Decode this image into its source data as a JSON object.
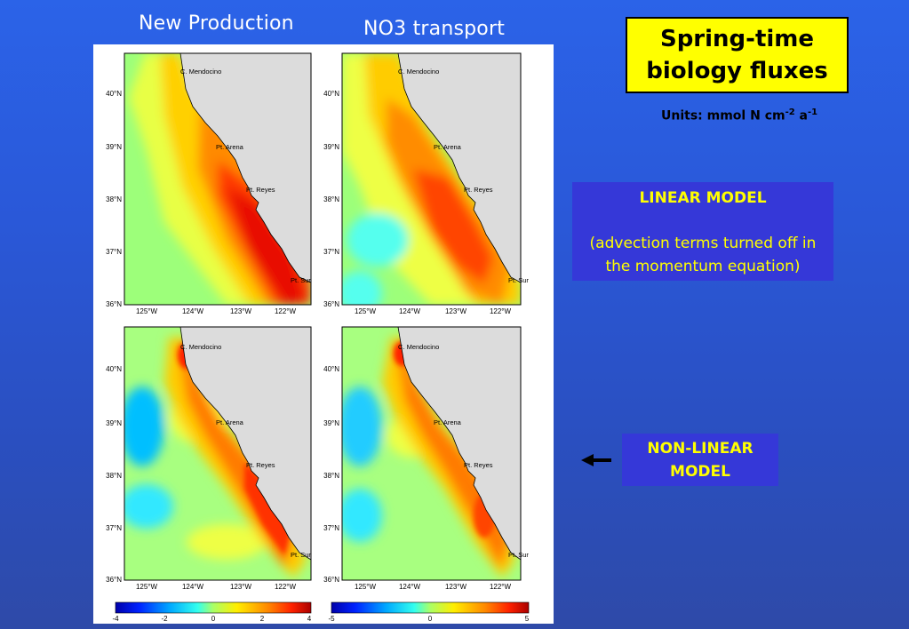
{
  "headers": {
    "new_production": "New Production",
    "no3_transport": "NO3 transport"
  },
  "title_box": {
    "line1": "Spring-time",
    "line2": "biology fluxes"
  },
  "units": {
    "prefix": "Units: mmol N cm",
    "exp1": "-2",
    "mid": " a",
    "exp2": "-1"
  },
  "linear_model": {
    "title": "LINEAR MODEL",
    "description": "(advection terms turned off in the momentum equation)"
  },
  "nonlinear_model": {
    "line1": "NON-LINEAR",
    "line2": "MODEL"
  },
  "map_labels": {
    "places": [
      "C. Mendocino",
      "Pt. Arena",
      "Pt. Reyes",
      "Pt. Sur"
    ],
    "lat_ticks": [
      "40°N",
      "39°N",
      "38°N",
      "37°N",
      "36°N"
    ],
    "lon_ticks": [
      "125°W",
      "124°W",
      "123°W",
      "122°W"
    ]
  },
  "colorbars": [
    {
      "ticks": [
        "-4",
        "-2",
        "0",
        "2",
        "4"
      ]
    },
    {
      "ticks": [
        "-5",
        "0",
        "5"
      ]
    }
  ],
  "colors": {
    "background": "#2b5ce0",
    "title_box": "#ffff00",
    "model_box": "#3538d8",
    "model_text": "#ffff00",
    "land": "#dcdcdc"
  },
  "icons": {
    "arrow": "left-arrow"
  }
}
